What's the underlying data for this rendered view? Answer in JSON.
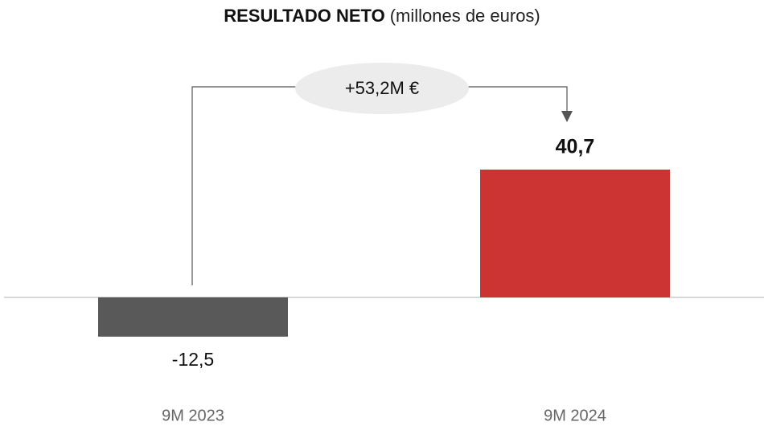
{
  "chart_data": {
    "type": "bar",
    "title": "RESULTADO NETO",
    "subtitle": "(millones de euros)",
    "categories": [
      "9M 2023",
      "9M 2024"
    ],
    "values": [
      -12.5,
      40.7
    ],
    "value_labels": [
      "-12,5",
      "40,7"
    ],
    "colors": [
      "#595959",
      "#cc3333"
    ],
    "annotation": "+53,2M €"
  }
}
